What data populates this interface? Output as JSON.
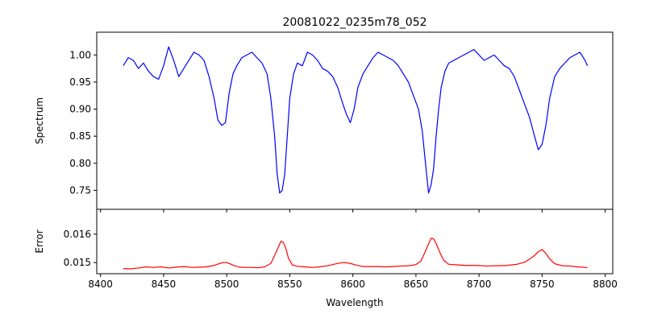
{
  "chart_data": [
    {
      "type": "line",
      "panel": "top",
      "title": "20081022_0235m78_052",
      "xlabel": "",
      "ylabel": "Spectrum",
      "xlim": [
        8397,
        8806
      ],
      "ylim": [
        0.715,
        1.042
      ],
      "x_ticks": [
        "8400",
        "8450",
        "8500",
        "8550",
        "8600",
        "8650",
        "8700",
        "8750",
        "8800"
      ],
      "y_ticks": [
        "0.75",
        "0.80",
        "0.85",
        "0.90",
        "0.95",
        "1.00"
      ],
      "tick_labels_shown_x": false,
      "grid": false,
      "line_color": "#0000ff",
      "series": [
        {
          "x": [
            8418,
            8422,
            8426,
            8430,
            8434,
            8438,
            8442,
            8446,
            8450,
            8454,
            8458,
            8462,
            8466,
            8470,
            8474,
            8478,
            8482,
            8486,
            8490,
            8493,
            8496,
            8499,
            8502,
            8505,
            8508,
            8512,
            8516,
            8520,
            8524,
            8528,
            8532,
            8535,
            8538,
            8540,
            8542,
            8544,
            8546,
            8548,
            8550,
            8553,
            8556,
            8560,
            8564,
            8568,
            8572,
            8576,
            8580,
            8584,
            8588,
            8592,
            8595,
            8598,
            8601,
            8604,
            8608,
            8612,
            8616,
            8620,
            8624,
            8628,
            8632,
            8636,
            8640,
            8644,
            8648,
            8652,
            8655,
            8658,
            8660,
            8662,
            8664,
            8666,
            8668,
            8670,
            8673,
            8676,
            8680,
            8684,
            8688,
            8692,
            8696,
            8700,
            8704,
            8708,
            8712,
            8716,
            8720,
            8724,
            8728,
            8732,
            8736,
            8740,
            8744,
            8747,
            8750,
            8753,
            8756,
            8760,
            8764,
            8768,
            8772,
            8776,
            8780,
            8784,
            8786
          ],
          "y": [
            0.98,
            0.995,
            0.99,
            0.975,
            0.985,
            0.97,
            0.96,
            0.955,
            0.98,
            1.015,
            0.99,
            0.96,
            0.975,
            0.99,
            1.005,
            1.0,
            0.99,
            0.96,
            0.92,
            0.88,
            0.87,
            0.875,
            0.93,
            0.965,
            0.98,
            0.995,
            1.0,
            1.005,
            0.995,
            0.985,
            0.965,
            0.92,
            0.85,
            0.78,
            0.745,
            0.75,
            0.78,
            0.85,
            0.92,
            0.965,
            0.985,
            0.98,
            1.005,
            1.0,
            0.99,
            0.975,
            0.97,
            0.96,
            0.94,
            0.91,
            0.89,
            0.875,
            0.9,
            0.94,
            0.965,
            0.98,
            0.995,
            1.005,
            1.0,
            0.995,
            0.99,
            0.98,
            0.965,
            0.95,
            0.925,
            0.9,
            0.86,
            0.79,
            0.745,
            0.76,
            0.79,
            0.85,
            0.9,
            0.94,
            0.97,
            0.985,
            0.99,
            0.995,
            1.0,
            1.005,
            1.01,
            1.0,
            0.99,
            0.995,
            1.0,
            0.99,
            0.98,
            0.975,
            0.96,
            0.935,
            0.91,
            0.885,
            0.85,
            0.825,
            0.835,
            0.87,
            0.92,
            0.96,
            0.975,
            0.985,
            0.995,
            1.0,
            1.005,
            0.99,
            0.98
          ]
        }
      ]
    },
    {
      "type": "line",
      "panel": "bottom",
      "title": "",
      "xlabel": "Wavelength",
      "ylabel": "Error",
      "xlim": [
        8397,
        8806
      ],
      "ylim": [
        0.01461,
        0.01687
      ],
      "x_ticks": [
        "8400",
        "8450",
        "8500",
        "8550",
        "8600",
        "8650",
        "8700",
        "8750",
        "8800"
      ],
      "y_ticks": [
        "0.015",
        "0.016"
      ],
      "grid": false,
      "line_color": "#ff0000",
      "series": [
        {
          "x": [
            8418,
            8424,
            8430,
            8436,
            8442,
            8448,
            8454,
            8460,
            8466,
            8472,
            8478,
            8484,
            8490,
            8494,
            8497,
            8500,
            8503,
            8506,
            8510,
            8515,
            8520,
            8525,
            8530,
            8535,
            8538,
            8541,
            8543,
            8545,
            8547,
            8549,
            8552,
            8556,
            8562,
            8568,
            8574,
            8580,
            8586,
            8590,
            8594,
            8598,
            8602,
            8608,
            8614,
            8620,
            8626,
            8632,
            8638,
            8644,
            8650,
            8654,
            8657,
            8660,
            8662,
            8664,
            8666,
            8669,
            8672,
            8676,
            8682,
            8690,
            8698,
            8706,
            8714,
            8722,
            8730,
            8736,
            8740,
            8744,
            8747,
            8750,
            8753,
            8756,
            8760,
            8766,
            8772,
            8778,
            8784,
            8786
          ],
          "y": [
            0.01479,
            0.01478,
            0.01481,
            0.01485,
            0.01483,
            0.01485,
            0.01481,
            0.01484,
            0.01486,
            0.01483,
            0.01484,
            0.01485,
            0.0149,
            0.01496,
            0.015,
            0.015,
            0.01495,
            0.01489,
            0.01484,
            0.01483,
            0.01483,
            0.01482,
            0.01485,
            0.01497,
            0.01525,
            0.01555,
            0.01575,
            0.0157,
            0.01548,
            0.01515,
            0.01492,
            0.01487,
            0.01485,
            0.01483,
            0.01485,
            0.01489,
            0.01495,
            0.01499,
            0.015,
            0.01497,
            0.01492,
            0.01486,
            0.01486,
            0.01486,
            0.01485,
            0.01486,
            0.01488,
            0.01489,
            0.01493,
            0.01505,
            0.01535,
            0.01566,
            0.01585,
            0.01583,
            0.01567,
            0.01535,
            0.01508,
            0.01494,
            0.01492,
            0.0149,
            0.0149,
            0.01488,
            0.01489,
            0.0149,
            0.01494,
            0.01501,
            0.01512,
            0.01525,
            0.01538,
            0.01546,
            0.01532,
            0.01513,
            0.01496,
            0.01489,
            0.01488,
            0.01485,
            0.01483,
            0.01482
          ]
        }
      ]
    }
  ]
}
